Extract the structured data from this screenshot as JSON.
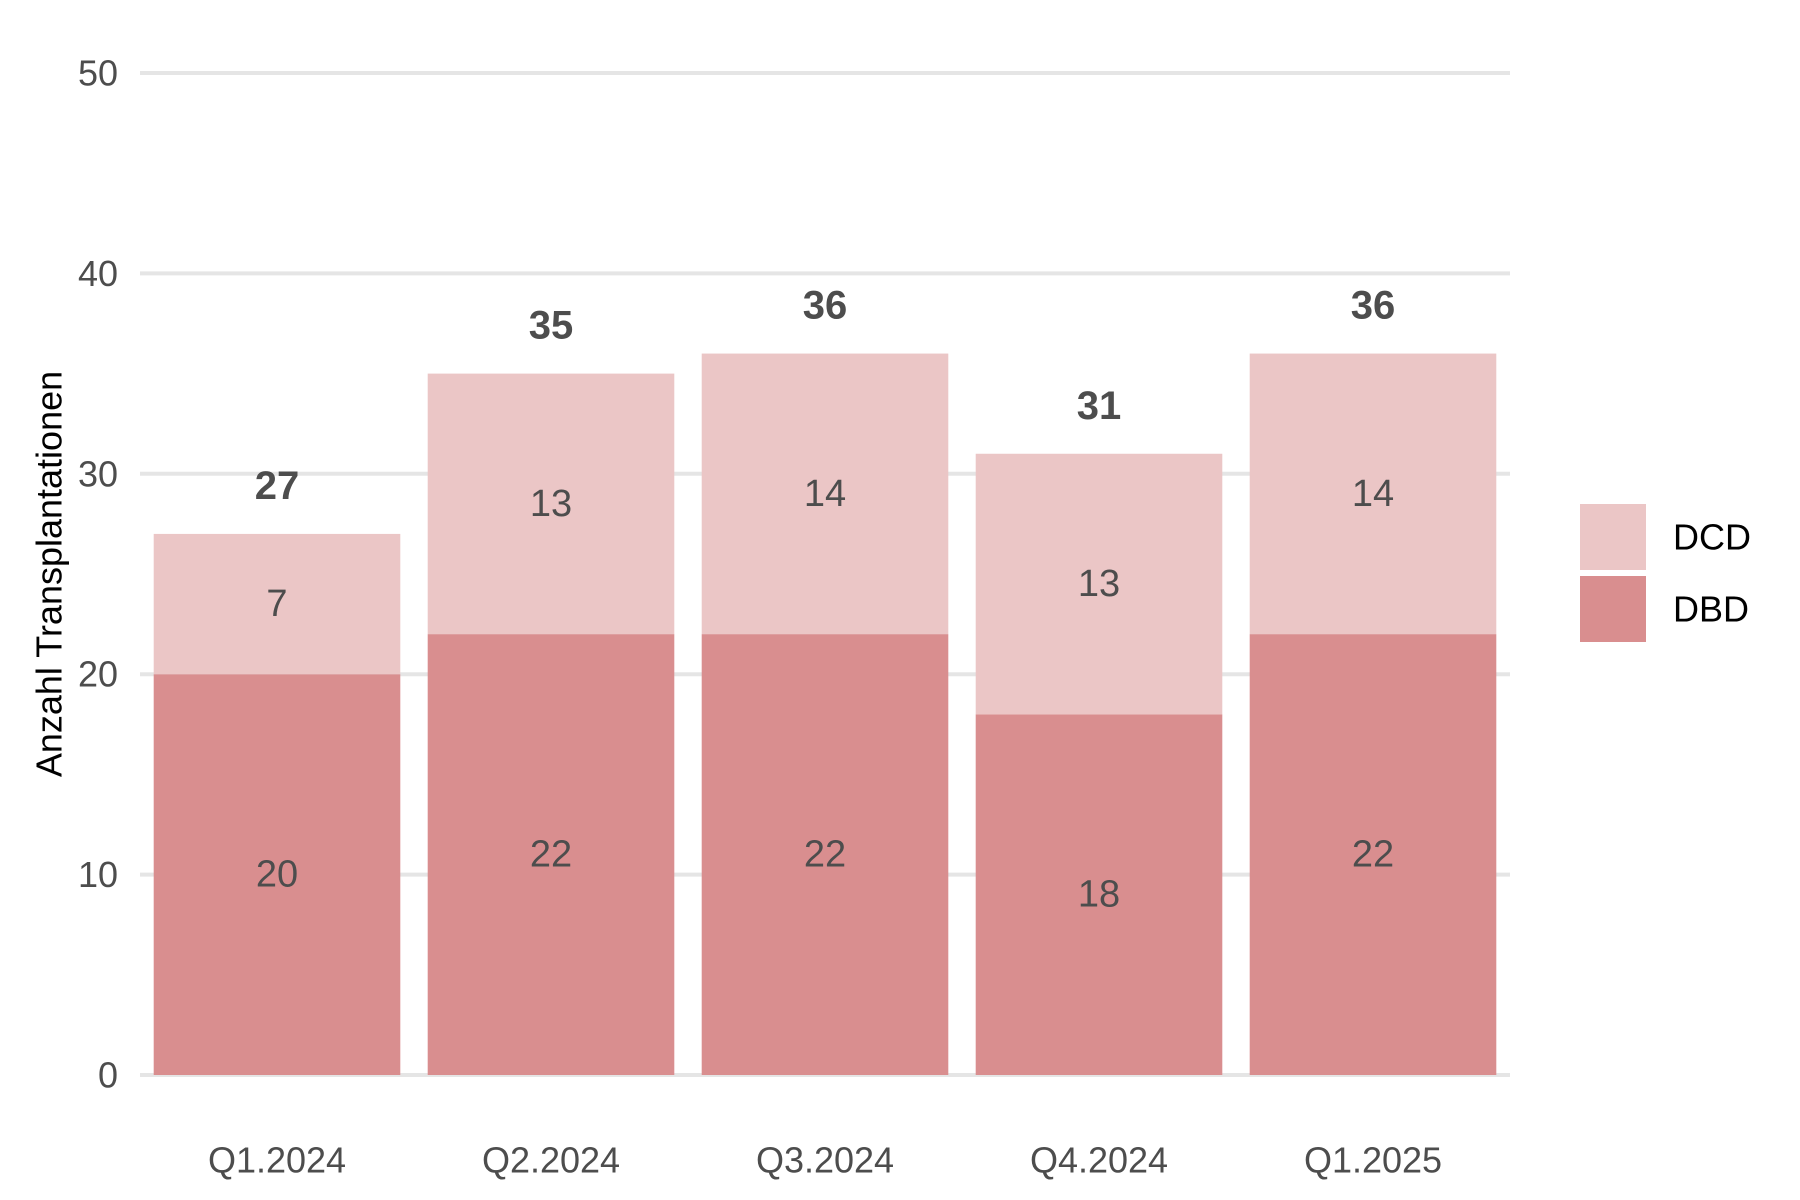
{
  "chart_data": {
    "type": "bar",
    "stacked": true,
    "categories": [
      "Q1.2024",
      "Q2.2024",
      "Q3.2024",
      "Q4.2024",
      "Q1.2025"
    ],
    "series": [
      {
        "name": "DBD",
        "values": [
          20,
          22,
          22,
          18,
          22
        ],
        "color": "#d98e8f"
      },
      {
        "name": "DCD",
        "values": [
          7,
          13,
          14,
          13,
          14
        ],
        "color": "#ebc6c6"
      }
    ],
    "totals": [
      27,
      35,
      36,
      31,
      36
    ],
    "xlabel": "",
    "ylabel": "Anzahl Transplantationen",
    "ylim": [
      0,
      50
    ],
    "yticks": [
      0,
      10,
      20,
      30,
      40,
      50
    ],
    "grid": "horizontal",
    "legend_position": "right",
    "legend_order": [
      "DCD",
      "DBD"
    ],
    "colors": {
      "grid": "#e5e5e5",
      "tick_text": "#4d4d4d",
      "label_text": "#4d4d4d"
    }
  }
}
